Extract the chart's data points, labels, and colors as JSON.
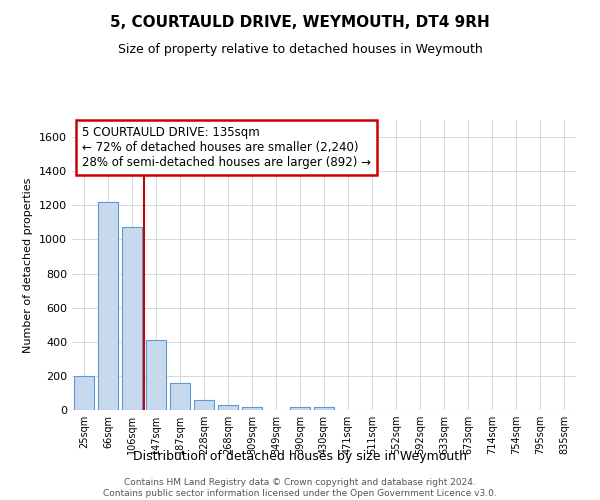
{
  "title": "5, COURTAULD DRIVE, WEYMOUTH, DT4 9RH",
  "subtitle": "Size of property relative to detached houses in Weymouth",
  "xlabel": "Distribution of detached houses by size in Weymouth",
  "ylabel": "Number of detached properties",
  "categories": [
    "25sqm",
    "66sqm",
    "106sqm",
    "147sqm",
    "187sqm",
    "228sqm",
    "268sqm",
    "309sqm",
    "349sqm",
    "390sqm",
    "430sqm",
    "471sqm",
    "511sqm",
    "552sqm",
    "592sqm",
    "633sqm",
    "673sqm",
    "714sqm",
    "754sqm",
    "795sqm",
    "835sqm"
  ],
  "values": [
    200,
    1220,
    1075,
    410,
    160,
    60,
    30,
    20,
    0,
    20,
    20,
    0,
    0,
    0,
    0,
    0,
    0,
    0,
    0,
    0,
    0
  ],
  "bar_color": "#c9d9ed",
  "bar_edge_color": "#5b9bd5",
  "property_line_x": 2.5,
  "annotation_line1": "5 COURTAULD DRIVE: 135sqm",
  "annotation_line2": "← 72% of detached houses are smaller (2,240)",
  "annotation_line3": "28% of semi-detached houses are larger (892) →",
  "annotation_box_color": "#ffffff",
  "annotation_box_edge": "#cc0000",
  "property_line_color": "#cc0000",
  "ylim": [
    0,
    1700
  ],
  "yticks": [
    0,
    200,
    400,
    600,
    800,
    1000,
    1200,
    1400,
    1600
  ],
  "footer": "Contains HM Land Registry data © Crown copyright and database right 2024.\nContains public sector information licensed under the Open Government Licence v3.0.",
  "background_color": "#ffffff",
  "grid_color": "#c8d4e0"
}
